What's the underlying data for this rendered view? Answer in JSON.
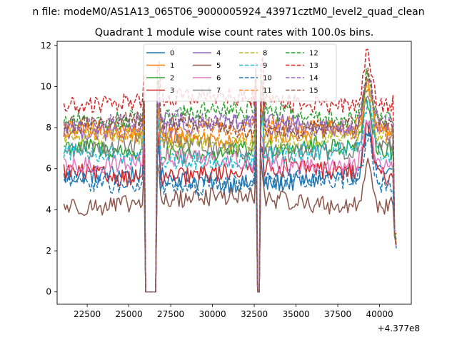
{
  "figure_title": "n file: modeM0/AS1A13_065T06_9000005924_43971cztM0_level2_quad_clean",
  "chart_data": {
    "type": "line",
    "title": "Quadrant 1 module wise count rates with 100.0s bins.",
    "xlabel": "",
    "ylabel": "",
    "x_offset_label": "+4.377e8",
    "xlim": [
      20700,
      41900
    ],
    "ylim": [
      -0.6,
      12.2
    ],
    "xticks": [
      22500,
      25000,
      27500,
      30000,
      32500,
      35000,
      37500,
      40000
    ],
    "yticks": [
      0,
      2,
      4,
      6,
      8,
      10,
      12
    ],
    "legend_position": "upper center",
    "x_start": 21100,
    "x_step": 100,
    "gaps": [
      [
        26000,
        26600
      ],
      [
        32700,
        32800
      ]
    ],
    "series": [
      {
        "name": "0",
        "color": "#1f77b4",
        "dash": "solid",
        "baseline": 5.5,
        "phase": 0.3
      },
      {
        "name": "1",
        "color": "#ff7f0e",
        "dash": "solid",
        "baseline": 7.7,
        "phase": 1.1
      },
      {
        "name": "2",
        "color": "#2ca02c",
        "dash": "solid",
        "baseline": 6.9,
        "phase": 2.0
      },
      {
        "name": "3",
        "color": "#d62728",
        "dash": "solid",
        "baseline": 5.8,
        "phase": 2.7
      },
      {
        "name": "4",
        "color": "#9467bd",
        "dash": "solid",
        "baseline": 8.0,
        "phase": 3.4
      },
      {
        "name": "5",
        "color": "#8c564b",
        "dash": "solid",
        "baseline": 4.4,
        "phase": 4.1
      },
      {
        "name": "6",
        "color": "#e377c2",
        "dash": "solid",
        "baseline": 6.3,
        "phase": 4.9
      },
      {
        "name": "7",
        "color": "#7f7f7f",
        "dash": "solid",
        "baseline": 7.0,
        "phase": 5.6
      },
      {
        "name": "8",
        "color": "#bcbd22",
        "dash": "dashed",
        "baseline": 7.4,
        "phase": 0.7
      },
      {
        "name": "9",
        "color": "#17becf",
        "dash": "dashed",
        "baseline": 6.6,
        "phase": 1.5
      },
      {
        "name": "10",
        "color": "#1f77b4",
        "dash": "dashed",
        "baseline": 5.3,
        "phase": 2.3
      },
      {
        "name": "11",
        "color": "#ff7f0e",
        "dash": "dashed",
        "baseline": 7.9,
        "phase": 3.0
      },
      {
        "name": "12",
        "color": "#2ca02c",
        "dash": "dashed",
        "baseline": 8.6,
        "phase": 3.8
      },
      {
        "name": "13",
        "color": "#d62728",
        "dash": "dashed",
        "baseline": 9.3,
        "phase": 4.5
      },
      {
        "name": "14",
        "color": "#9467bd",
        "dash": "dashed",
        "baseline": 8.2,
        "phase": 5.2
      },
      {
        "name": "15",
        "color": "#8c564b",
        "dash": "dashed",
        "baseline": 8.1,
        "phase": 6.0
      }
    ]
  }
}
